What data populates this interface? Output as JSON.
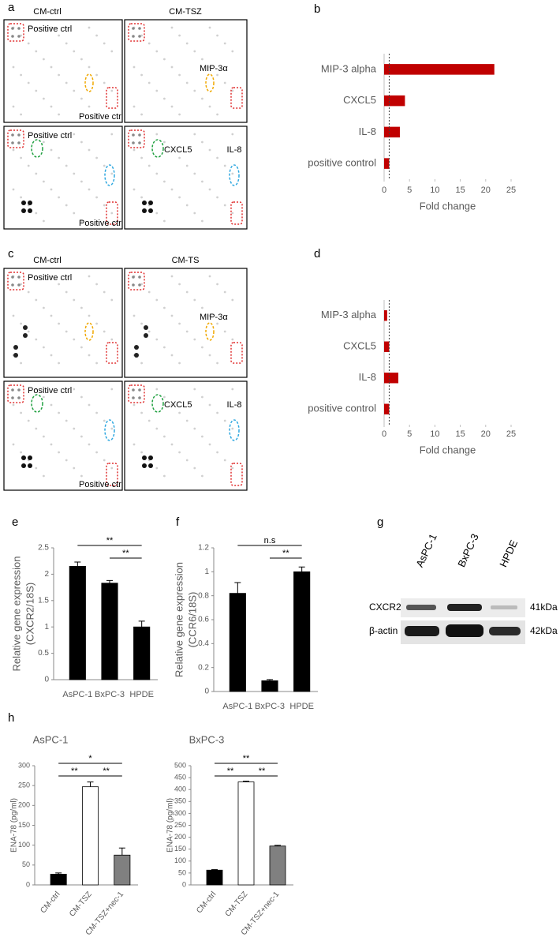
{
  "panel_labels": [
    "a",
    "b",
    "c",
    "d",
    "e",
    "f",
    "g",
    "h"
  ],
  "arrays": [
    {
      "columns": [
        "CM-ctrl",
        "CM-TSZ"
      ],
      "positive_labels": [
        "Positive ctrl",
        "Positive ctrl",
        "Positive ctrl",
        "Positive ctrl"
      ],
      "top_target": "MIP-3α",
      "bottom_targets": [
        "CXCL5",
        "IL-8"
      ]
    },
    {
      "columns": [
        "CM-ctrl",
        "CM-TS"
      ],
      "positive_labels": [
        "Positive ctrl",
        "Positive ctrl",
        "Positive ctrl"
      ],
      "top_target": "MIP-3α",
      "bottom_targets": [
        "CXCL5",
        "IL-8"
      ]
    }
  ],
  "blot": {
    "lanes": [
      "AsPC-1",
      "BxPC-3",
      "HPDE"
    ],
    "rows": [
      "CXCR2",
      "β-actin"
    ],
    "sizes": [
      "41kDa",
      "42kDa"
    ]
  },
  "chart_data": [
    {
      "type": "barh",
      "categories": [
        "MIP-3 alpha",
        "CXCL5",
        "IL-8",
        "positive control"
      ],
      "values": [
        21.7,
        4.1,
        3.1,
        1
      ],
      "color": "#c00000",
      "xlim": [
        0,
        25
      ],
      "xticks": [
        0,
        5,
        10,
        15,
        20,
        25
      ],
      "xlabel": "Fold change",
      "reference_line": 1
    },
    {
      "type": "barh",
      "categories": [
        "MIP-3 alpha",
        "CXCL5",
        "IL-8",
        "positive control"
      ],
      "values": [
        0.6,
        1,
        2.8,
        1
      ],
      "color": "#c00000",
      "xlim": [
        0,
        25
      ],
      "xticks": [
        0,
        5,
        10,
        15,
        20,
        25
      ],
      "xlabel": "Fold change",
      "reference_line": 1
    },
    {
      "type": "bar",
      "categories": [
        "AsPC-1",
        "BxPC-3",
        "HPDE"
      ],
      "values": [
        2.15,
        1.83,
        1.0
      ],
      "errors": [
        0.08,
        0.05,
        0.11
      ],
      "color": "#000000",
      "ylim": [
        0,
        2.5
      ],
      "yticks": [
        0,
        0.5,
        1,
        1.5,
        2,
        2.5
      ],
      "ylabel": [
        "Relative gene expression",
        "(CXCR2/18S)"
      ],
      "significance": [
        {
          "label": "**",
          "from": 0,
          "to": 2
        },
        {
          "label": "**",
          "from": 1,
          "to": 2
        }
      ]
    },
    {
      "type": "bar",
      "categories": [
        "AsPC-1",
        "BxPC-3",
        "HPDE"
      ],
      "values": [
        0.82,
        0.09,
        1.0
      ],
      "errors": [
        0.09,
        0.01,
        0.04
      ],
      "color": "#000000",
      "ylim": [
        0,
        1.2
      ],
      "yticks": [
        0,
        0.2,
        0.4,
        0.6,
        0.8,
        1,
        1.2
      ],
      "ylabel": [
        "Relative gene expression",
        "(CCR6/18S)"
      ],
      "significance": [
        {
          "label": "n.s",
          "from": 0,
          "to": 2
        },
        {
          "label": "**",
          "from": 1,
          "to": 2
        }
      ]
    },
    {
      "type": "bar",
      "title": "AsPC-1",
      "categories": [
        "CM-ctrl",
        "CM-TSZ",
        "CM-TSZ+nec-1"
      ],
      "values": [
        27,
        247,
        75
      ],
      "errors": [
        3,
        12,
        18
      ],
      "colors": [
        "#000000",
        "#ffffff",
        "#808080"
      ],
      "ylim": [
        0,
        300
      ],
      "yticks": [
        0,
        50,
        100,
        150,
        200,
        250,
        300
      ],
      "ylabel": "ENA-78 (pg/ml)",
      "significance": [
        {
          "label": "*",
          "from": 0,
          "to": 2
        },
        {
          "label": "**",
          "from": 0,
          "to": 1
        },
        {
          "label": "**",
          "from": 1,
          "to": 2
        }
      ]
    },
    {
      "type": "bar",
      "title": "BxPC-3",
      "categories": [
        "CM-ctrl",
        "CM-TSZ",
        "CM-TSZ+nec-1"
      ],
      "values": [
        62,
        432,
        163
      ],
      "errors": [
        2,
        3,
        3
      ],
      "colors": [
        "#000000",
        "#ffffff",
        "#808080"
      ],
      "ylim": [
        0,
        500
      ],
      "yticks": [
        0,
        50,
        100,
        150,
        200,
        250,
        300,
        350,
        400,
        450,
        500
      ],
      "ylabel": "ENA-78 (pg/ml)",
      "significance": [
        {
          "label": "**",
          "from": 0,
          "to": 2
        },
        {
          "label": "**",
          "from": 0,
          "to": 1
        },
        {
          "label": "**",
          "from": 1,
          "to": 2
        }
      ]
    }
  ]
}
